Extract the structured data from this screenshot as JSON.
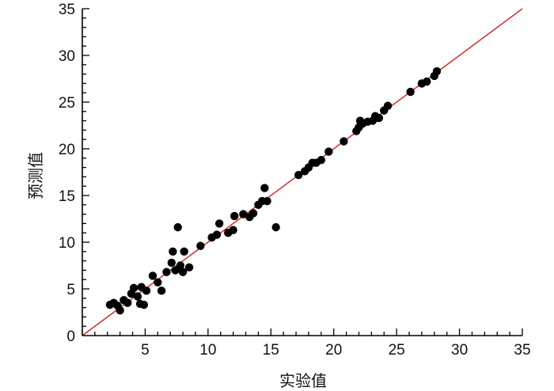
{
  "chart_data": {
    "type": "scatter",
    "xlabel": "实验值",
    "ylabel": "预测值",
    "xlim": [
      0,
      35
    ],
    "ylim": [
      0,
      35
    ],
    "xticks": [
      "5",
      "10",
      "15",
      "20",
      "25",
      "30",
      "35"
    ],
    "yticks": [
      "0",
      "5",
      "10",
      "15",
      "20",
      "25",
      "30",
      "35"
    ],
    "grid": false,
    "colors": {
      "points": "#000000",
      "line": "#d42a2a",
      "axes": "#000000"
    },
    "reference_line": {
      "type": "y=x",
      "from": [
        0,
        0
      ],
      "to": [
        35,
        35
      ]
    },
    "points": [
      [
        2.2,
        3.3
      ],
      [
        2.5,
        3.5
      ],
      [
        2.8,
        3.2
      ],
      [
        3.0,
        2.7
      ],
      [
        3.3,
        3.8
      ],
      [
        3.6,
        3.5
      ],
      [
        3.9,
        4.5
      ],
      [
        4.1,
        5.1
      ],
      [
        4.4,
        4.2
      ],
      [
        4.6,
        3.4
      ],
      [
        4.7,
        5.2
      ],
      [
        4.9,
        3.3
      ],
      [
        5.1,
        4.8
      ],
      [
        5.6,
        6.4
      ],
      [
        6.0,
        5.7
      ],
      [
        6.3,
        4.8
      ],
      [
        6.7,
        6.8
      ],
      [
        7.1,
        7.8
      ],
      [
        7.2,
        9.0
      ],
      [
        7.4,
        7.0
      ],
      [
        7.6,
        11.6
      ],
      [
        7.8,
        7.5
      ],
      [
        8.0,
        6.8
      ],
      [
        8.1,
        9.0
      ],
      [
        8.5,
        7.3
      ],
      [
        9.4,
        9.6
      ],
      [
        10.3,
        10.5
      ],
      [
        10.7,
        10.8
      ],
      [
        10.9,
        12.0
      ],
      [
        11.6,
        11.0
      ],
      [
        12.0,
        11.3
      ],
      [
        12.1,
        12.8
      ],
      [
        12.8,
        13.0
      ],
      [
        13.3,
        12.7
      ],
      [
        13.6,
        13.1
      ],
      [
        14.0,
        14.0
      ],
      [
        14.3,
        14.4
      ],
      [
        14.5,
        15.8
      ],
      [
        14.7,
        14.4
      ],
      [
        15.4,
        11.6
      ],
      [
        17.2,
        17.2
      ],
      [
        17.7,
        17.6
      ],
      [
        18.0,
        18.0
      ],
      [
        18.3,
        18.5
      ],
      [
        18.6,
        18.5
      ],
      [
        19.0,
        18.8
      ],
      [
        19.6,
        19.7
      ],
      [
        20.8,
        20.8
      ],
      [
        21.8,
        21.9
      ],
      [
        22.0,
        22.3
      ],
      [
        22.1,
        23.0
      ],
      [
        22.3,
        22.7
      ],
      [
        22.7,
        22.9
      ],
      [
        23.1,
        23.0
      ],
      [
        23.3,
        23.5
      ],
      [
        23.6,
        23.3
      ],
      [
        24.0,
        24.1
      ],
      [
        24.3,
        24.6
      ],
      [
        26.1,
        26.1
      ],
      [
        27.0,
        27.0
      ],
      [
        27.4,
        27.2
      ],
      [
        28.0,
        27.8
      ],
      [
        28.2,
        28.3
      ]
    ]
  }
}
